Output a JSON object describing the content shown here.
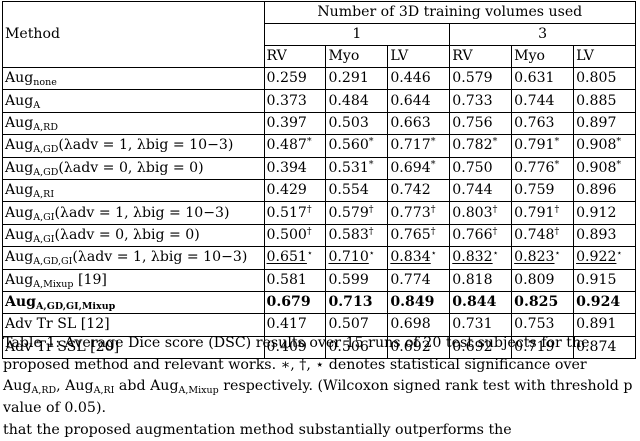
{
  "table": {
    "method_header": "Method",
    "group_header": "Number of 3D training volumes used",
    "volume_counts": [
      "1",
      "3"
    ],
    "columns": [
      "RV",
      "Myo",
      "LV",
      "RV",
      "Myo",
      "LV"
    ],
    "rows": [
      {
        "base": "Aug",
        "sub": "none",
        "params": "",
        "values": [
          "0.259",
          "0.291",
          "0.446",
          "0.579",
          "0.631",
          "0.805"
        ],
        "marks": [
          "",
          "",
          "",
          "",
          "",
          ""
        ],
        "bold": false,
        "underline": false
      },
      {
        "base": "Aug",
        "sub": "A",
        "params": "",
        "values": [
          "0.373",
          "0.484",
          "0.644",
          "0.733",
          "0.744",
          "0.885"
        ],
        "marks": [
          "",
          "",
          "",
          "",
          "",
          ""
        ],
        "bold": false,
        "underline": false
      },
      {
        "base": "Aug",
        "sub": "A,RD",
        "params": "",
        "values": [
          "0.397",
          "0.503",
          "0.663",
          "0.756",
          "0.763",
          "0.897"
        ],
        "marks": [
          "",
          "",
          "",
          "",
          "",
          ""
        ],
        "bold": false,
        "underline": false
      },
      {
        "base": "Aug",
        "sub": "A,GD",
        "params": "(λadv = 1, λbig = 10−3)",
        "values": [
          "0.487",
          "0.560",
          "0.717",
          "0.782",
          "0.791",
          "0.908"
        ],
        "marks": [
          "*",
          "*",
          "*",
          "*",
          "*",
          "*"
        ],
        "bold": false,
        "underline": false
      },
      {
        "base": "Aug",
        "sub": "A,GD",
        "params": "(λadv = 0, λbig = 0)",
        "values": [
          "0.394",
          "0.531",
          "0.694",
          "0.750",
          "0.776",
          "0.908"
        ],
        "marks": [
          "",
          "*",
          "*",
          "",
          "*",
          "*"
        ],
        "bold": false,
        "underline": false
      },
      {
        "base": "Aug",
        "sub": "A,RI",
        "params": "",
        "values": [
          "0.429",
          "0.554",
          "0.742",
          "0.744",
          "0.759",
          "0.896"
        ],
        "marks": [
          "",
          "",
          "",
          "",
          "",
          ""
        ],
        "bold": false,
        "underline": false
      },
      {
        "base": "Aug",
        "sub": "A,GI",
        "params": "(λadv = 1, λbig = 10−3)",
        "values": [
          "0.517",
          "0.579",
          "0.773",
          "0.803",
          "0.791",
          "0.912"
        ],
        "marks": [
          "†",
          "†",
          "†",
          "†",
          "†",
          ""
        ],
        "bold": false,
        "underline": false
      },
      {
        "base": "Aug",
        "sub": "A,GI",
        "params": "(λadv = 0, λbig = 0)",
        "values": [
          "0.500",
          "0.583",
          "0.765",
          "0.766",
          "0.748",
          "0.893"
        ],
        "marks": [
          "†",
          "†",
          "†",
          "†",
          "†",
          ""
        ],
        "bold": false,
        "underline": false
      },
      {
        "base": "Aug",
        "sub": "A,GD,GI",
        "params": "(λadv = 1, λbig = 10−3)",
        "values": [
          "0.651",
          "0.710",
          "0.834",
          "0.832",
          "0.823",
          "0.922"
        ],
        "marks": [
          "⋆",
          "⋆",
          "⋆",
          "⋆",
          "⋆",
          "⋆"
        ],
        "bold": false,
        "underline": true
      },
      {
        "base": "Aug",
        "sub": "A,Mixup",
        "params": " [19]",
        "values": [
          "0.581",
          "0.599",
          "0.774",
          "0.818",
          "0.809",
          "0.915"
        ],
        "marks": [
          "",
          "",
          "",
          "",
          "",
          ""
        ],
        "bold": false,
        "underline": false
      },
      {
        "base": "Aug",
        "sub": "A,GD,GI,Mixup",
        "params": "",
        "values": [
          "0.679",
          "0.713",
          "0.849",
          "0.844",
          "0.825",
          "0.924"
        ],
        "marks": [
          "",
          "",
          "",
          "",
          "",
          ""
        ],
        "bold": true,
        "underline": false
      },
      {
        "base": "Adv Tr SL [12]",
        "sub": "",
        "params": "",
        "values": [
          "0.417",
          "0.507",
          "0.698",
          "0.731",
          "0.753",
          "0.891"
        ],
        "marks": [
          "",
          "",
          "",
          "",
          "",
          ""
        ],
        "bold": false,
        "underline": false
      },
      {
        "base": "Adv Tr SSL [20]",
        "sub": "",
        "params": "",
        "values": [
          "0.409",
          "0.506",
          "0.692",
          "0.692",
          "0.719",
          "0.874"
        ],
        "marks": [
          "",
          "",
          "",
          "",
          "",
          ""
        ],
        "bold": false,
        "underline": false
      }
    ]
  },
  "caption": {
    "label": "Table 1:",
    "text": " Average Dice score (DSC) results over 15 runs of 20 test subjects for the proposed method and relevant works. ∗, †, ⋆ denotes statistical significance over Aug",
    "sub1": "A,RD",
    "mid1": ", Aug",
    "sub2": "A,RI",
    "mid2": " abd Aug",
    "sub3": "A,Mixup",
    "tail": " respectively. (Wilcoxon signed rank test with threshold p value of 0.05)."
  },
  "body_fragment": "that the proposed augmentation method substantially outperforms the"
}
